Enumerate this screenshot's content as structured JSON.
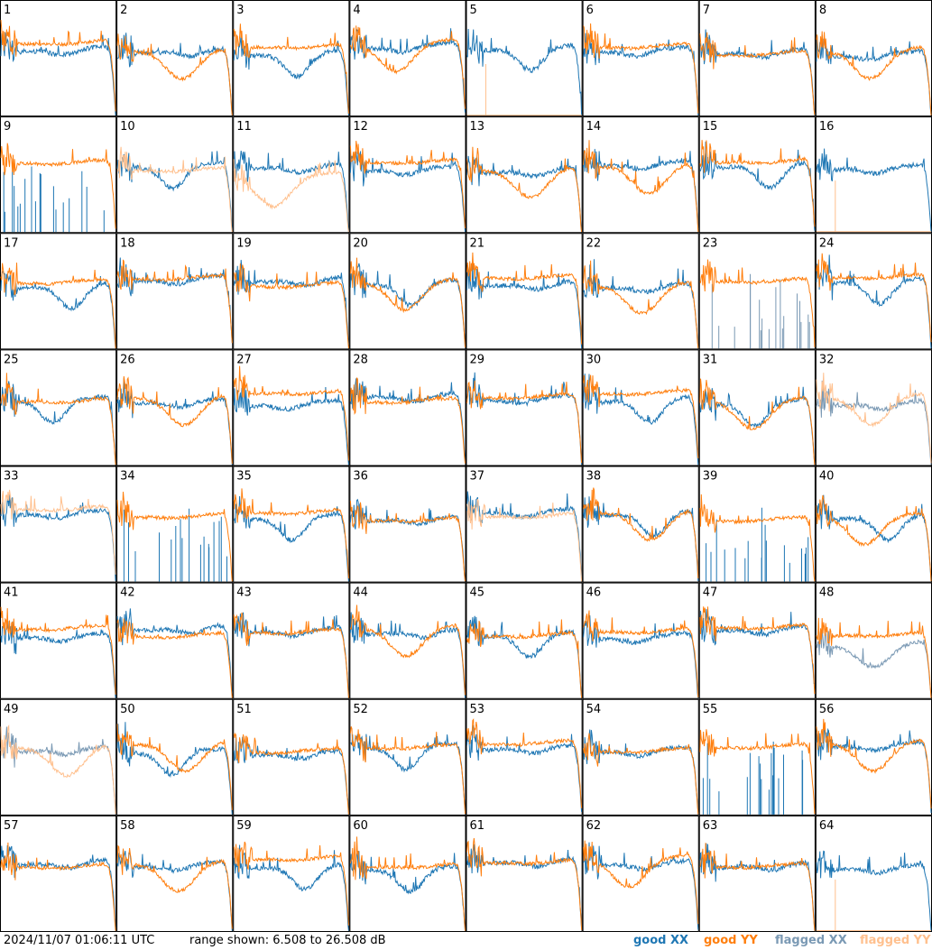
{
  "chart_data": {
    "type": "line",
    "panels": [
      1,
      2,
      3,
      4,
      5,
      6,
      7,
      8,
      9,
      10,
      11,
      12,
      13,
      14,
      15,
      16,
      17,
      18,
      19,
      20,
      21,
      22,
      23,
      24,
      25,
      26,
      27,
      28,
      29,
      30,
      31,
      32,
      33,
      34,
      35,
      36,
      37,
      38,
      39,
      40,
      41,
      42,
      43,
      44,
      45,
      46,
      47,
      48,
      49,
      50,
      51,
      52,
      53,
      54,
      55,
      56,
      57,
      58,
      59,
      60,
      61,
      62,
      63,
      64
    ],
    "grid": {
      "columns": 8,
      "rows": 8
    },
    "y_range_db": [
      6.508,
      26.508
    ],
    "series": [
      {
        "name": "good XX",
        "color": "#1f77b4"
      },
      {
        "name": "good YY",
        "color": "#ff7f0e"
      },
      {
        "name": "flagged XX",
        "color": "#7a99b4"
      },
      {
        "name": "flagged YY",
        "color": "#ffc08e"
      }
    ],
    "panel_states": {
      "5": "yy-flagged-flat",
      "9": "xx-flagged-spikes",
      "10": "yy-flagged",
      "11": "yy-flagged-dip",
      "16": "yy-flagged-flat",
      "23": "xx-flagged-noise",
      "32": "all-flagged",
      "33": "yy-flagged",
      "34": "xx-flagged-spikes",
      "37": "yy-flagged",
      "39": "xx-flagged-spikes",
      "48": "xx-flagged-dip",
      "49": "both-flagged",
      "55": "xx-flagged-spikes",
      "64": "yy-flagged-flat"
    }
  },
  "footer": {
    "timestamp": "2024/11/07 01:06:11 UTC",
    "range": "range shown: 6.508 to 26.508 dB"
  },
  "legend": [
    {
      "label": "good XX",
      "color": "#1f77b4"
    },
    {
      "label": "good YY",
      "color": "#ff7f0e"
    },
    {
      "label": "flagged XX",
      "color": "#7a99b4"
    },
    {
      "label": "flagged YY",
      "color": "#ffc08e"
    }
  ]
}
